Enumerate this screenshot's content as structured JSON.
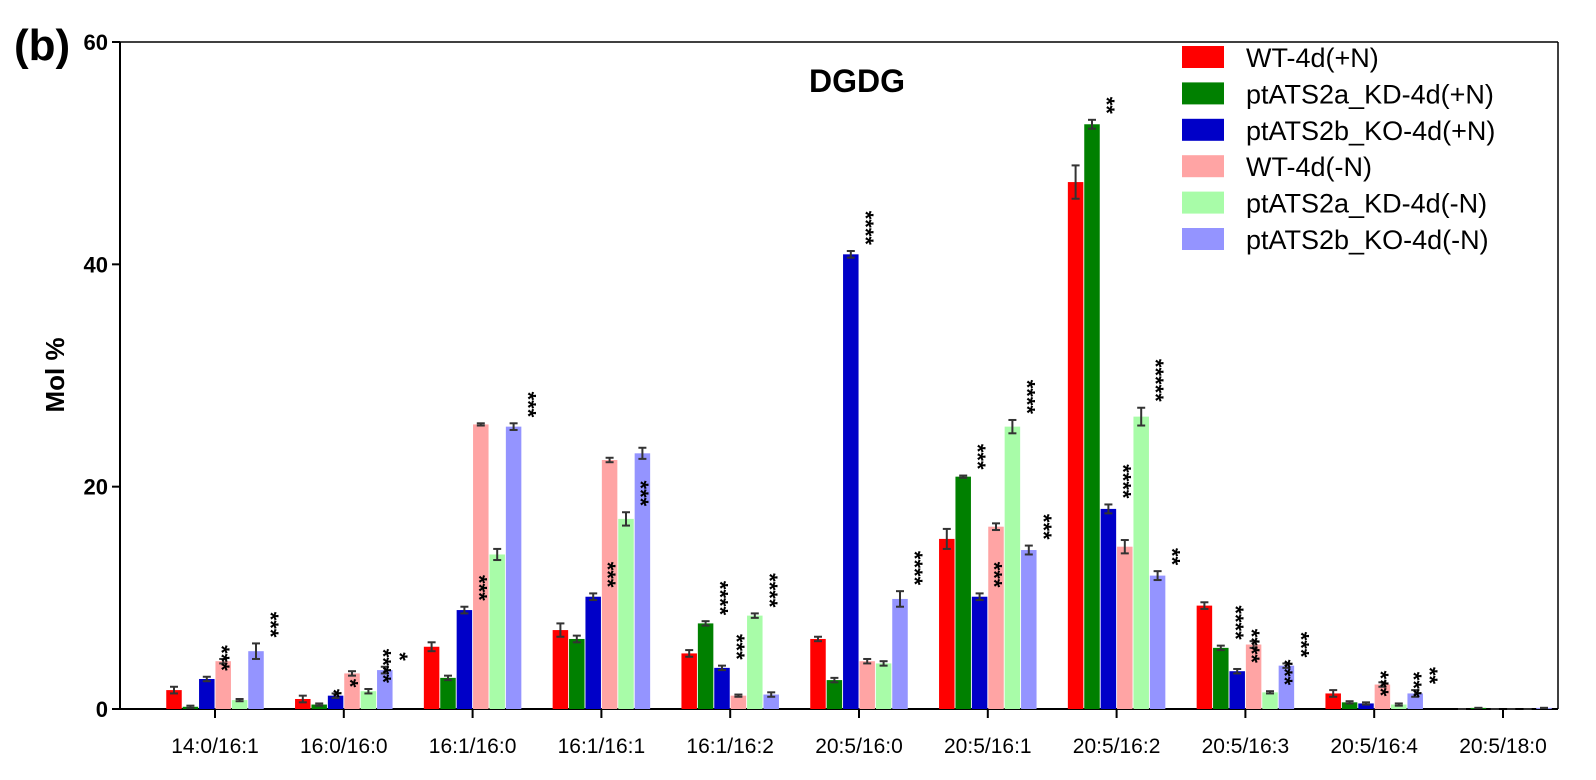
{
  "panel_label": "(b)",
  "chart_data": {
    "type": "bar",
    "title": "DGDG",
    "xlabel": "",
    "ylabel": "Mol %",
    "ylim": [
      0,
      60
    ],
    "yticks": [
      0,
      20,
      40,
      60
    ],
    "legend_position": "top-right",
    "categories": [
      "14:0/16:1",
      "16:0/16:0",
      "16:1/16:0",
      "16:1/16:1",
      "16:1/16:2",
      "20:5/16:0",
      "20:5/16:1",
      "20:5/16:2",
      "20:5/16:3",
      "20:5/16:4",
      "20:5/18:0"
    ],
    "series": [
      {
        "name": "WT-4d(+N)",
        "color": "#ff0000",
        "values": [
          1.7,
          0.9,
          5.6,
          7.1,
          5.0,
          6.3,
          15.3,
          47.4,
          9.3,
          1.4,
          0.0
        ],
        "errors": [
          0.3,
          0.3,
          0.4,
          0.6,
          0.3,
          0.2,
          0.9,
          1.5,
          0.3,
          0.3,
          0.0
        ],
        "sig": [
          "",
          "",
          "",
          "",
          "",
          "",
          "",
          "",
          "",
          "",
          ""
        ]
      },
      {
        "name": "ptATS2a_KD-4d(+N)",
        "color": "#008000",
        "values": [
          0.2,
          0.4,
          2.8,
          6.3,
          7.7,
          2.6,
          20.9,
          52.6,
          5.5,
          0.6,
          0.1
        ],
        "errors": [
          0.1,
          0.1,
          0.2,
          0.3,
          0.2,
          0.2,
          0.1,
          0.4,
          0.2,
          0.1,
          0.0
        ],
        "sig": [
          "",
          "*",
          "",
          "",
          "****",
          "",
          "***",
          "**",
          "****",
          "",
          ""
        ]
      },
      {
        "name": "ptATS2b_KO-4d(+N)",
        "color": "#0000c8",
        "values": [
          2.7,
          1.2,
          8.9,
          10.1,
          3.7,
          40.9,
          10.1,
          18.0,
          3.4,
          0.5,
          0.0
        ],
        "errors": [
          0.2,
          0.2,
          0.3,
          0.3,
          0.2,
          0.3,
          0.3,
          0.4,
          0.2,
          0.1,
          0.0
        ],
        "sig": [
          "***",
          "*",
          "***",
          "***",
          "***",
          "****",
          "***",
          "****",
          "****",
          "***",
          ""
        ]
      },
      {
        "name": "WT-4d(-N)",
        "color": "#ffa4a4",
        "values": [
          4.3,
          3.2,
          25.6,
          22.4,
          1.2,
          4.3,
          16.4,
          14.6,
          5.8,
          2.2,
          0.0
        ],
        "errors": [
          0.2,
          0.2,
          0.1,
          0.2,
          0.1,
          0.2,
          0.3,
          0.6,
          0.3,
          0.2,
          0.0
        ],
        "sig": [
          "",
          "",
          "",
          "",
          "",
          "",
          "",
          "",
          "",
          "",
          ""
        ]
      },
      {
        "name": "ptATS2a_KD-4d(-N)",
        "color": "#a8fca8",
        "values": [
          0.8,
          1.6,
          13.9,
          17.1,
          8.4,
          4.1,
          25.4,
          26.3,
          1.5,
          0.4,
          0.0
        ],
        "errors": [
          0.1,
          0.2,
          0.5,
          0.6,
          0.2,
          0.2,
          0.6,
          0.8,
          0.1,
          0.1,
          0.0
        ],
        "sig": [
          "",
          "****",
          "",
          "***",
          "****",
          "",
          "****",
          "*****",
          "***",
          "***",
          ""
        ]
      },
      {
        "name": "ptATS2b_KO-4d(-N)",
        "color": "#9494ff",
        "values": [
          5.2,
          3.5,
          25.4,
          23.0,
          1.3,
          9.9,
          14.3,
          12.0,
          3.9,
          1.4,
          0.1
        ],
        "errors": [
          0.7,
          0.3,
          0.3,
          0.5,
          0.2,
          0.7,
          0.4,
          0.4,
          0.2,
          0.3,
          0.0
        ],
        "sig": [
          "***",
          "*",
          "***",
          "",
          "",
          "****",
          "***",
          "**",
          "***",
          "**",
          ""
        ]
      }
    ]
  }
}
